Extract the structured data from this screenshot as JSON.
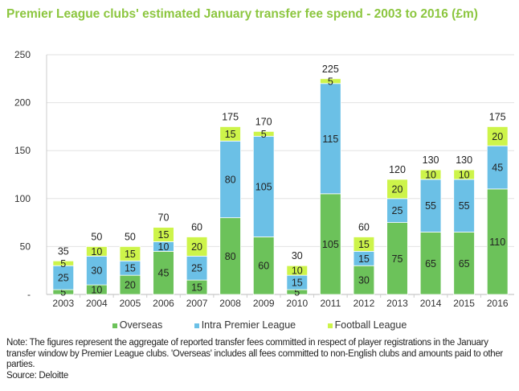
{
  "chart_data": {
    "type": "bar",
    "stacked": true,
    "title": "Premier League clubs' estimated January transfer fee spend - 2003 to 2016 (£m)",
    "xlabel": "",
    "ylabel": "",
    "ylim": [
      0,
      250
    ],
    "yticks": [
      0,
      50,
      100,
      150,
      200,
      250
    ],
    "ytick_labels": [
      "-",
      "50",
      "100",
      "150",
      "200",
      "250"
    ],
    "grid": true,
    "legend_position": "bottom",
    "categories": [
      "2003",
      "2004",
      "2005",
      "2006",
      "2007",
      "2008",
      "2009",
      "2010",
      "2011",
      "2012",
      "2013",
      "2014",
      "2015",
      "2016"
    ],
    "series": [
      {
        "name": "Overseas",
        "color": "#6cc25a",
        "values": [
          5,
          10,
          20,
          45,
          15,
          80,
          60,
          5,
          105,
          30,
          75,
          65,
          65,
          110
        ]
      },
      {
        "name": "Intra Premier League",
        "color": "#6bc0e6",
        "values": [
          25,
          30,
          15,
          10,
          25,
          80,
          105,
          15,
          115,
          15,
          25,
          55,
          55,
          45
        ]
      },
      {
        "name": "Football League",
        "color": "#cdf44a",
        "values": [
          5,
          10,
          15,
          15,
          20,
          15,
          5,
          10,
          5,
          15,
          20,
          10,
          10,
          20
        ]
      }
    ],
    "totals": [
      35,
      50,
      50,
      70,
      60,
      175,
      170,
      30,
      225,
      60,
      120,
      130,
      130,
      175
    ]
  },
  "note": "Note:  The figures represent the aggregate of reported transfer fees committed in respect of player registrations in the January transfer window by Premier League clubs.  'Overseas' includes all fees committed to non-English clubs and amounts paid to other parties.",
  "source": "Source: Deloitte"
}
